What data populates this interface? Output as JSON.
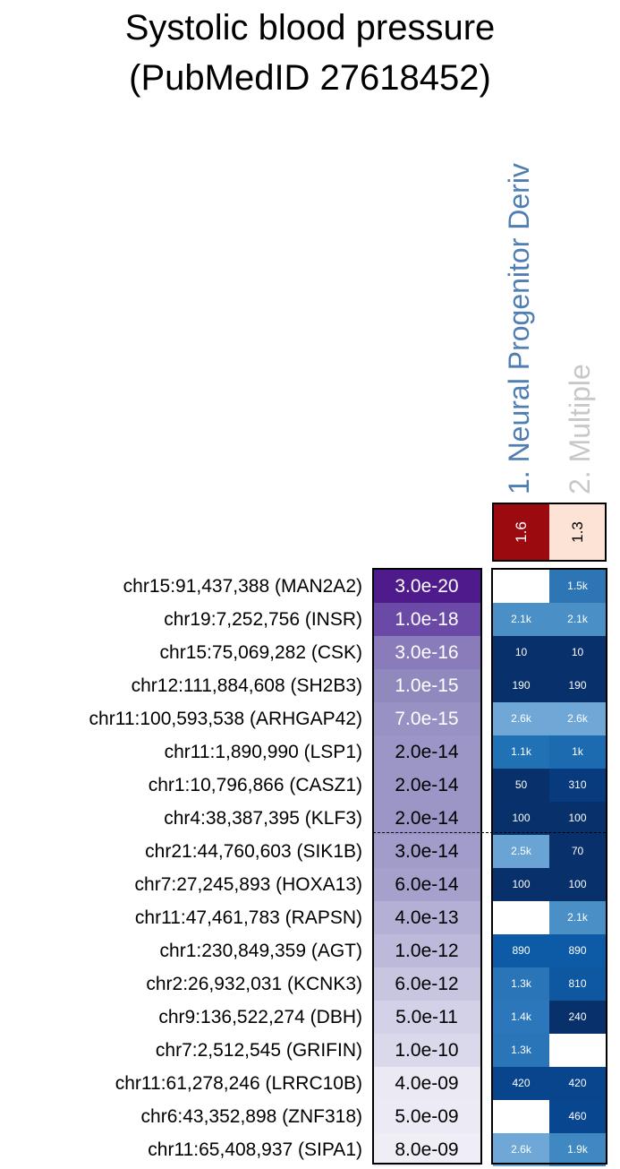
{
  "title_lines": [
    "Systolic blood pressure",
    "(PubMedID 27618452)"
  ],
  "columns": [
    {
      "label": "1. Neural Progenitor Deriv",
      "color": "#4f7eb4",
      "enrichment": "1.6",
      "enrichment_bg": "#9b0a0e",
      "enrichment_fg": "#ffffff"
    },
    {
      "label": "2. Multiple",
      "color": "#c8c8c8",
      "enrichment": "1.3",
      "enrichment_bg": "#fde3d5",
      "enrichment_fg": "#000000"
    }
  ],
  "chart_data": {
    "type": "heatmap",
    "title": "Systolic blood pressure (PubMedID 27618452)",
    "columns": [
      "1. Neural Progenitor Deriv",
      "2. Multiple"
    ],
    "column_enrichment": [
      1.6,
      1.3
    ],
    "significance_cutoff_after_row": 8,
    "rows": [
      {
        "locus": "chr15:91,437,388 (MAN2A2)",
        "pvalue": "3.0e-20",
        "pval_color": "#4f1a8c",
        "cells": [
          {
            "label": "",
            "color": "#ffffff"
          },
          {
            "label": "1.5k",
            "color": "#2e75b6"
          }
        ]
      },
      {
        "locus": "chr19:7,252,756 (INSR)",
        "pvalue": "1.0e-18",
        "pval_color": "#6a4aa6",
        "cells": [
          {
            "label": "2.1k",
            "color": "#4a8fc6"
          },
          {
            "label": "2.1k",
            "color": "#4a8fc6"
          }
        ]
      },
      {
        "locus": "chr15:75,069,282 (CSK)",
        "pvalue": "3.0e-16",
        "pval_color": "#8a7cba",
        "cells": [
          {
            "label": "10",
            "color": "#08306b"
          },
          {
            "label": "10",
            "color": "#08306b"
          }
        ]
      },
      {
        "locus": "chr12:111,884,608 (SH2B3)",
        "pvalue": "1.0e-15",
        "pval_color": "#9089be",
        "cells": [
          {
            "label": "190",
            "color": "#08306b"
          },
          {
            "label": "190",
            "color": "#08306b"
          }
        ]
      },
      {
        "locus": "chr11:100,593,538 (ARHGAP42)",
        "pvalue": "7.0e-15",
        "pval_color": "#9891c3",
        "cells": [
          {
            "label": "2.6k",
            "color": "#6fa8d6"
          },
          {
            "label": "2.6k",
            "color": "#6fa8d6"
          }
        ]
      },
      {
        "locus": "chr11:1,890,990 (LSP1)",
        "pvalue": "2.0e-14",
        "pval_color": "#9c96c6",
        "cells": [
          {
            "label": "1.1k",
            "color": "#2171b5"
          },
          {
            "label": "1k",
            "color": "#1c6ab0"
          }
        ]
      },
      {
        "locus": "chr1:10,796,866 (CASZ1)",
        "pvalue": "2.0e-14",
        "pval_color": "#9c96c6",
        "cells": [
          {
            "label": "50",
            "color": "#08306b"
          },
          {
            "label": "310",
            "color": "#083a7e"
          }
        ]
      },
      {
        "locus": "chr4:38,387,395 (KLF3)",
        "pvalue": "2.0e-14",
        "pval_color": "#9c96c6",
        "cells": [
          {
            "label": "100",
            "color": "#08306b"
          },
          {
            "label": "100",
            "color": "#08306b"
          }
        ]
      },
      {
        "locus": "chr21:44,760,603 (SIK1B)",
        "pvalue": "3.0e-14",
        "pval_color": "#a19cca",
        "cells": [
          {
            "label": "2.5k",
            "color": "#6aa4d4"
          },
          {
            "label": "70",
            "color": "#08306b"
          }
        ]
      },
      {
        "locus": "chr7:27,245,893 (HOXA13)",
        "pvalue": "6.0e-14",
        "pval_color": "#a6a1cc",
        "cells": [
          {
            "label": "100",
            "color": "#08306b"
          },
          {
            "label": "100",
            "color": "#08306b"
          }
        ]
      },
      {
        "locus": "chr11:47,461,783 (RAPSN)",
        "pvalue": "4.0e-13",
        "pval_color": "#b4b0d5",
        "cells": [
          {
            "label": "",
            "color": "#ffffff"
          },
          {
            "label": "2.1k",
            "color": "#4a8fc6"
          }
        ]
      },
      {
        "locus": "chr1:230,849,359 (AGT)",
        "pvalue": "1.0e-12",
        "pval_color": "#bcb9da",
        "cells": [
          {
            "label": "890",
            "color": "#0d5aa6"
          },
          {
            "label": "890",
            "color": "#0d5aa6"
          }
        ]
      },
      {
        "locus": "chr2:26,932,031 (KCNK3)",
        "pvalue": "6.0e-12",
        "pval_color": "#c7c5e0",
        "cells": [
          {
            "label": "1.3k",
            "color": "#2a74b8"
          },
          {
            "label": "810",
            "color": "#0e58a2"
          }
        ]
      },
      {
        "locus": "chr9:136,522,274 (DBH)",
        "pvalue": "5.0e-11",
        "pval_color": "#d3d1e7",
        "cells": [
          {
            "label": "1.4k",
            "color": "#2c77bb"
          },
          {
            "label": "240",
            "color": "#08306b"
          }
        ]
      },
      {
        "locus": "chr7:2,512,545 (GRIFIN)",
        "pvalue": "1.0e-10",
        "pval_color": "#dad9eb",
        "cells": [
          {
            "label": "1.3k",
            "color": "#2a74b8"
          },
          {
            "label": "",
            "color": "#ffffff"
          }
        ]
      },
      {
        "locus": "chr11:61,278,246 (LRRC10B)",
        "pvalue": "4.0e-09",
        "pval_color": "#ebeaf4",
        "cells": [
          {
            "label": "420",
            "color": "#08458c"
          },
          {
            "label": "420",
            "color": "#08458c"
          }
        ]
      },
      {
        "locus": "chr6:43,352,898 (ZNF318)",
        "pvalue": "5.0e-09",
        "pval_color": "#eceaf4",
        "cells": [
          {
            "label": "",
            "color": "#ffffff"
          },
          {
            "label": "460",
            "color": "#08478f"
          }
        ]
      },
      {
        "locus": "chr11:65,408,937 (SIPA1)",
        "pvalue": "8.0e-09",
        "pval_color": "#efeef6",
        "cells": [
          {
            "label": "2.6k",
            "color": "#6fa8d6"
          },
          {
            "label": "1.9k",
            "color": "#3f88c2"
          }
        ]
      }
    ]
  }
}
